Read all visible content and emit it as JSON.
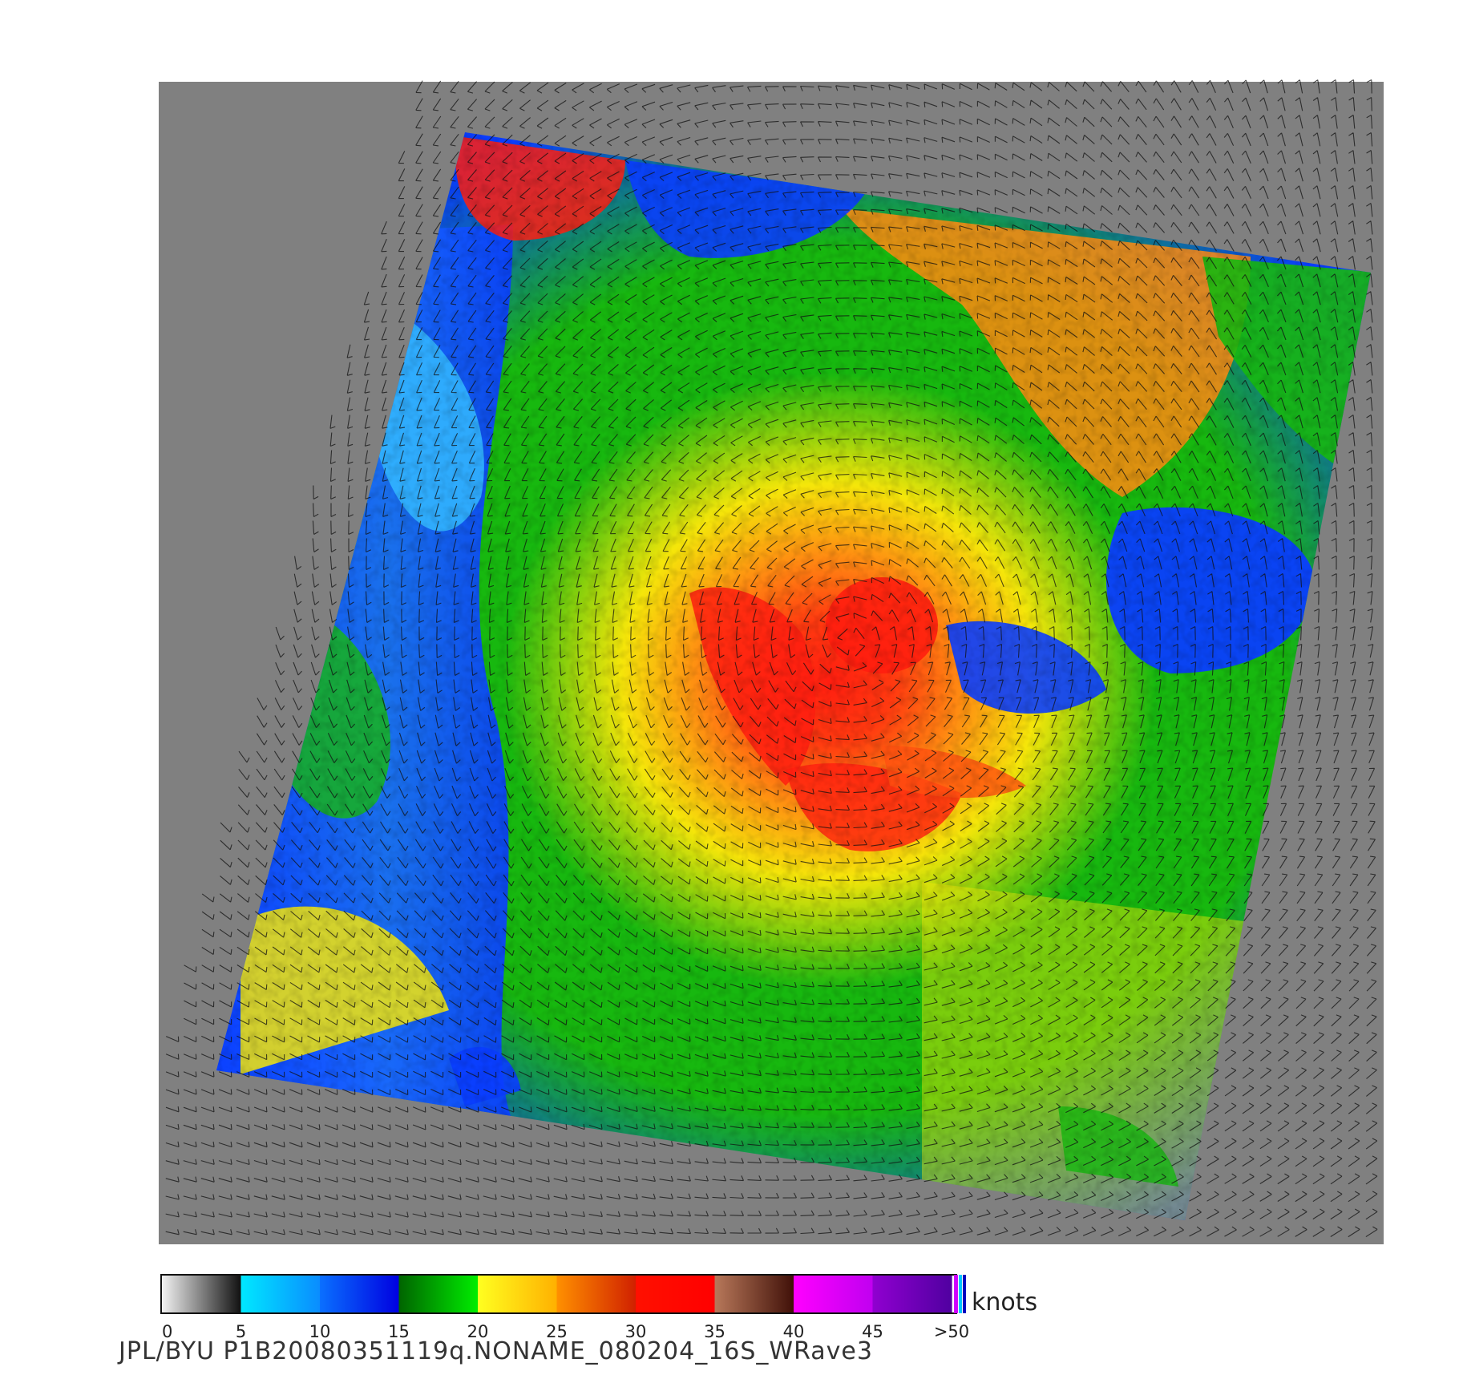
{
  "image": {
    "subject": "QuikSCAT ocean surface wind speed swath with wind vectors around a tropical cyclone",
    "colors": {
      "background": "#808080",
      "calm": "#6a6a6a",
      "light": "#2db3ff",
      "moderate": "#0a3dff",
      "fresh": "#17b80f",
      "strong": "#f5e60a",
      "gale": "#ff8a12",
      "storm": "#ff1e10",
      "severe": "#8a3a1e",
      "extreme": "#e020e8"
    }
  },
  "colorbar": {
    "units": "knots",
    "ticks": [
      "0",
      "5",
      "10",
      "15",
      "20",
      "25",
      "30",
      "35",
      "40",
      "45",
      ">50"
    ],
    "segments": [
      {
        "from": "#f2f2f2",
        "to": "#101010"
      },
      {
        "from": "#00e8ff",
        "to": "#0a8cff"
      },
      {
        "from": "#0a70ff",
        "to": "#0000e0"
      },
      {
        "from": "#006400",
        "to": "#00ee00"
      },
      {
        "from": "#ffff20",
        "to": "#ffb000"
      },
      {
        "from": "#ff9000",
        "to": "#d02000"
      },
      {
        "from": "#ff1000",
        "to": "#ff0000"
      },
      {
        "from": "#b8785a",
        "to": "#401008"
      },
      {
        "from": "#ff00ff",
        "to": "#c000f0"
      },
      {
        "from": "#9000d0",
        "to": "#5000a0"
      }
    ]
  },
  "caption": "JPL/BYU  P1B20080351119q.NONAME_080204_16S_WRave3"
}
